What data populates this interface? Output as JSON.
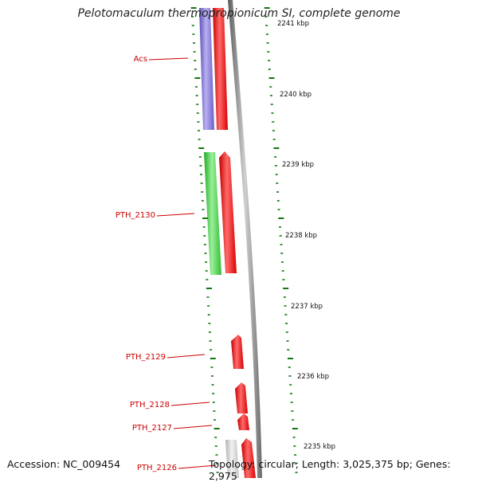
{
  "title": "Pelotomaculum thermopropionicum SI, complete genome",
  "footer": {
    "accession": "Accession: NC_009454",
    "topology": "Topology: circular; Length: 3,025,375 bp; Genes: 2,975"
  },
  "scale": {
    "ticks": [
      {
        "label": "2241 kbp"
      },
      {
        "label": "2240 kbp"
      },
      {
        "label": "2239 kbp"
      },
      {
        "label": "2238 kbp"
      },
      {
        "label": "2237 kbp"
      },
      {
        "label": "2236 kbp"
      },
      {
        "label": "2235 kbp"
      }
    ]
  },
  "genes": [
    {
      "label": "Acs",
      "color": "#7766cc",
      "strand": "minus"
    },
    {
      "label": "",
      "color": "#ee1111",
      "strand": "plus"
    },
    {
      "label": "PTH_2130",
      "color": "#44cc44",
      "strand": "minus"
    },
    {
      "label": "",
      "color": "#ee1111",
      "strand": "plus"
    },
    {
      "label": "PTH_2129",
      "color": "#ee1111",
      "strand": "plus"
    },
    {
      "label": "PTH_2128",
      "color": "#ee1111",
      "strand": "plus"
    },
    {
      "label": "PTH_2127",
      "color": "#ee1111",
      "strand": "plus"
    },
    {
      "label": "PTH_2126",
      "color": "#cccccc",
      "strand": "minus"
    },
    {
      "label": "",
      "color": "#ee1111",
      "strand": "plus"
    }
  ],
  "colors": {
    "backbone": "#808080",
    "tick": "#117711",
    "label_line": "#cc0000"
  }
}
